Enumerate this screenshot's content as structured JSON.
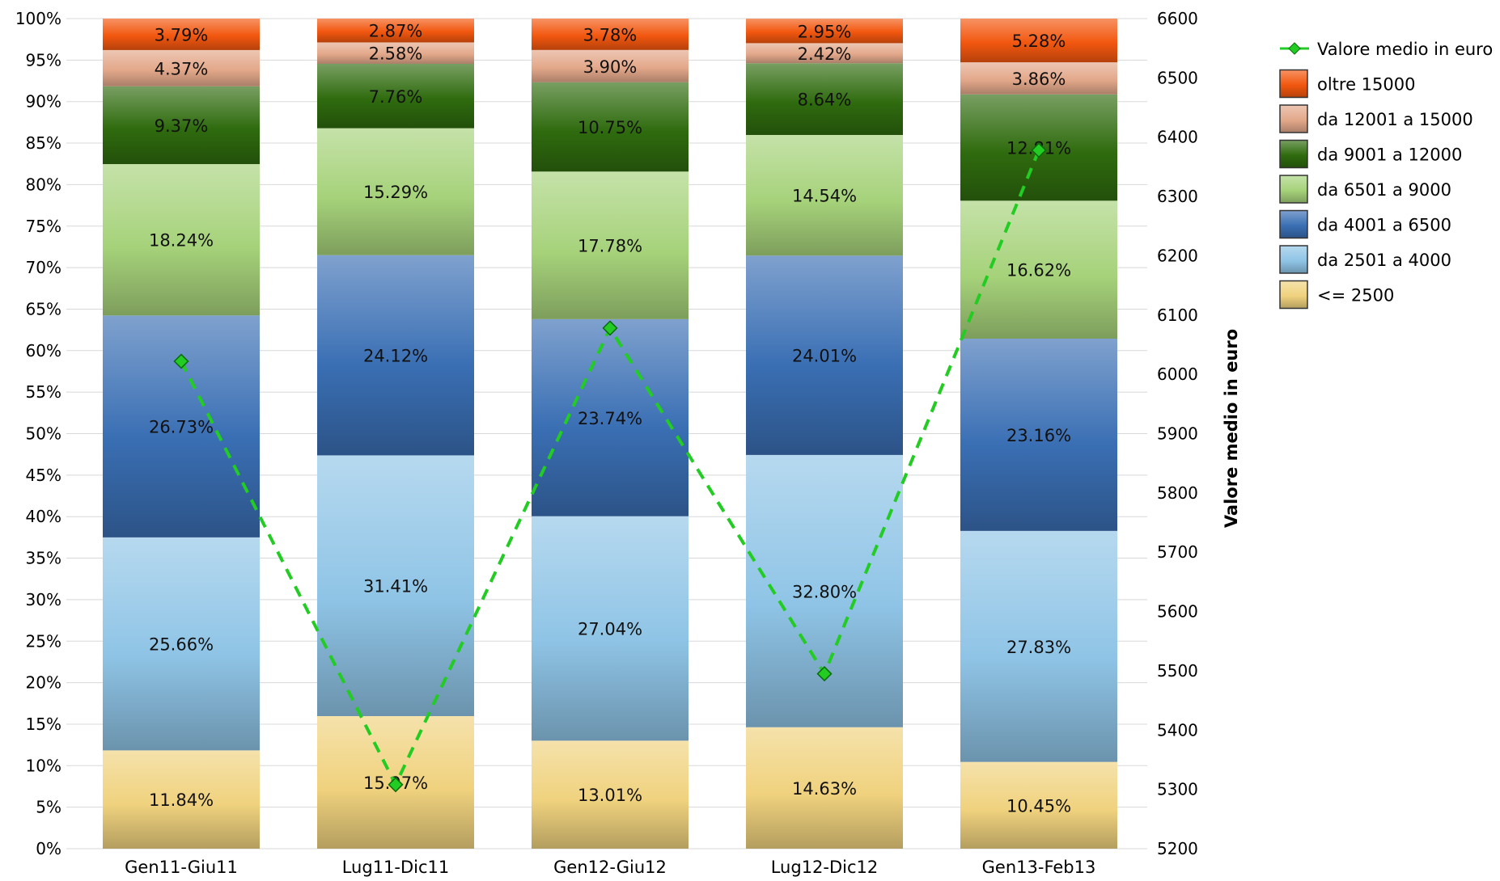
{
  "chart_data": {
    "type": "bar",
    "stacked": true,
    "percent_stacked": true,
    "categories": [
      "Gen11-Giu11",
      "Lug11-Dic11",
      "Gen12-Giu12",
      "Lug12-Dic12",
      "Gen13-Feb13"
    ],
    "series": [
      {
        "name": "<= 2500",
        "color": "#f0d27e",
        "values": [
          11.84,
          15.97,
          13.01,
          14.63,
          10.45
        ],
        "labels": [
          "11.84%",
          "15.97%",
          "13.01%",
          "14.63%",
          "10.45%"
        ]
      },
      {
        "name": "da 2501 a 4000",
        "color": "#8fc4e6",
        "values": [
          25.66,
          31.41,
          27.04,
          32.8,
          27.83
        ],
        "labels": [
          "25.66%",
          "31.41%",
          "27.04%",
          "32.80%",
          "27.83%"
        ]
      },
      {
        "name": "da 4001 a 6500",
        "color": "#3a6fb4",
        "values": [
          26.73,
          24.12,
          23.74,
          24.01,
          23.16
        ],
        "labels": [
          "26.73%",
          "24.12%",
          "23.74%",
          "24.01%",
          "23.16%"
        ]
      },
      {
        "name": "da 6501 a 9000",
        "color": "#a6d27a",
        "values": [
          18.24,
          15.29,
          17.78,
          14.54,
          16.62
        ],
        "labels": [
          "18.24%",
          "15.29%",
          "17.78%",
          "14.54%",
          "16.62%"
        ]
      },
      {
        "name": "da 9001 a 12000",
        "color": "#2f6b0e",
        "values": [
          9.37,
          7.76,
          10.75,
          8.64,
          12.81
        ],
        "labels": [
          "9.37%",
          "7.76%",
          "10.75%",
          "8.64%",
          "12.81%"
        ]
      },
      {
        "name": "da 12001 a 15000",
        "color": "#e3a88a",
        "values": [
          4.37,
          2.58,
          3.9,
          2.42,
          3.86
        ],
        "labels": [
          "4.37%",
          "2.58%",
          "3.90%",
          "2.42%",
          "3.86%"
        ]
      },
      {
        "name": "oltre 15000",
        "color": "#f2570f",
        "values": [
          3.79,
          2.87,
          3.78,
          2.95,
          5.28
        ],
        "labels": [
          "3.79%",
          "2.87%",
          "3.78%",
          "2.95%",
          "5.28%"
        ]
      }
    ],
    "line_series": {
      "name": "Valore medio in euro",
      "color": "#22cc22",
      "axis": "right",
      "values": [
        6022,
        5308,
        6078,
        5495,
        6378
      ]
    },
    "y_left": {
      "min": 0,
      "max": 100,
      "step": 5,
      "tick_labels": [
        "0%",
        "5%",
        "10%",
        "15%",
        "20%",
        "25%",
        "30%",
        "35%",
        "40%",
        "45%",
        "50%",
        "55%",
        "60%",
        "65%",
        "70%",
        "75%",
        "80%",
        "85%",
        "90%",
        "95%",
        "100%"
      ]
    },
    "y_right": {
      "label": "Valore medio in euro",
      "min": 5200,
      "max": 6600,
      "step": 100,
      "tick_labels": [
        "5200",
        "5300",
        "5400",
        "5500",
        "5600",
        "5700",
        "5800",
        "5900",
        "6000",
        "6100",
        "6200",
        "6300",
        "6400",
        "6500",
        "6600"
      ]
    },
    "grid": true,
    "legend": {
      "position": "right",
      "items": [
        "Valore medio in euro",
        "oltre 15000",
        "da 12001 a 15000",
        "da 9001 a 12000",
        "da 6501 a 9000",
        "da 4001 a 6500",
        "da 2501 a 4000",
        "<= 2500"
      ]
    }
  }
}
